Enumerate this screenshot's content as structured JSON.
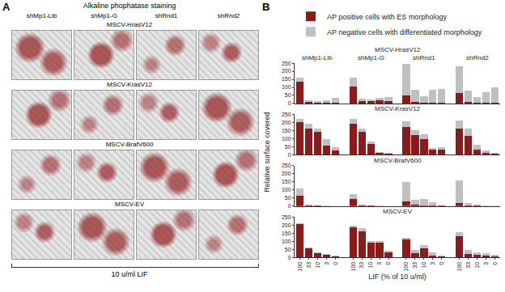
{
  "panel_labels": [
    "A",
    "B"
  ],
  "panel_a": {
    "title": "Alkaline phophatase staining",
    "columns": [
      "shMp1-Lib",
      "shMp1-G",
      "shRnd1",
      "shRnd2"
    ],
    "rows": [
      "MSCV-HrasV12",
      "MSCV-KrasV12",
      "MSCV-BrafV600",
      "MSCV-EV"
    ],
    "footer": "10 u/ml LIF"
  },
  "panel_b": {
    "ylabel": "Relative surface covered"
  },
  "chart_data": [
    {
      "type": "bar",
      "stacked": true,
      "title": "MSCV-HrasV12",
      "groups": [
        "shMp1-Lib",
        "shMp1-G",
        "shRnd1",
        "shRnd2"
      ],
      "categories": [
        "100",
        "33",
        "10",
        "3",
        "0"
      ],
      "series": [
        {
          "name": "AP positive cells with ES morphology",
          "color": "#8b1a1a",
          "values": [
            [
              135,
              10,
              5,
              5,
              5
            ],
            [
              105,
              15,
              15,
              20,
              15
            ],
            [
              50,
              10,
              5,
              5,
              5
            ],
            [
              65,
              10,
              5,
              5,
              5
            ]
          ]
        },
        {
          "name": "AP negative cells with differentiated morphology",
          "color": "#c0c0c0",
          "values": [
            [
              25,
              10,
              10,
              15,
              30
            ],
            [
              55,
              15,
              10,
              15,
              25
            ],
            [
              195,
              75,
              40,
              80,
              85
            ],
            [
              165,
              70,
              35,
              65,
              95
            ]
          ]
        }
      ],
      "ylim": [
        0,
        250
      ],
      "yticks": [
        0,
        50,
        100,
        150,
        200,
        250
      ],
      "tick_labels": "y",
      "legend": "top left"
    },
    {
      "type": "bar",
      "stacked": true,
      "title": "MSCV-KrasV12",
      "groups": [
        "shMp1-Lib",
        "shMp1-G",
        "shRnd1",
        "shRnd2"
      ],
      "categories": [
        "100",
        "33",
        "10",
        "3",
        "0"
      ],
      "series": [
        {
          "name": "AP positive cells with ES morphology",
          "color": "#8b1a1a",
          "values": [
            [
              200,
              160,
              140,
              55,
              25
            ],
            [
              190,
              140,
              65,
              10,
              5
            ],
            [
              170,
              120,
              95,
              30,
              30
            ],
            [
              160,
              115,
              30,
              10,
              5
            ]
          ]
        },
        {
          "name": "AP negative cells with differentiated morphology",
          "color": "#c0c0c0",
          "values": [
            [
              20,
              30,
              20,
              40,
              20
            ],
            [
              30,
              20,
              15,
              5,
              5
            ],
            [
              35,
              30,
              30,
              10,
              15
            ],
            [
              50,
              45,
              30,
              15,
              5
            ]
          ]
        }
      ],
      "ylim": [
        0,
        250
      ],
      "yticks": [
        0,
        50,
        100,
        150,
        200,
        250
      ],
      "tick_labels": "y"
    },
    {
      "type": "bar",
      "stacked": true,
      "title": "MSCV-BrafV600",
      "groups": [
        "shMp1-Lib",
        "shMp1-G",
        "shRnd1",
        "shRnd2"
      ],
      "categories": [
        "100",
        "33",
        "10",
        "3",
        "0"
      ],
      "series": [
        {
          "name": "AP positive cells with ES morphology",
          "color": "#8b1a1a",
          "values": [
            [
              65,
              5,
              2,
              1,
              0
            ],
            [
              45,
              5,
              2,
              1,
              0
            ],
            [
              30,
              10,
              5,
              3,
              2
            ],
            [
              20,
              5,
              2,
              1,
              0
            ]
          ]
        },
        {
          "name": "AP negative cells with differentiated morphology",
          "color": "#c0c0c0",
          "values": [
            [
              45,
              5,
              3,
              2,
              0
            ],
            [
              30,
              5,
              3,
              2,
              0
            ],
            [
              120,
              30,
              40,
              22,
              3
            ],
            [
              140,
              15,
              8,
              4,
              3
            ]
          ]
        }
      ],
      "ylim": [
        0,
        250
      ],
      "yticks": [
        0,
        50,
        100,
        150,
        200,
        250
      ],
      "tick_labels": "y"
    },
    {
      "type": "bar",
      "stacked": true,
      "title": "MSCV-EV",
      "xlabel": "LIF (% of 10 u/ml)",
      "groups": [
        "shMp1-Lib",
        "shMp1-G",
        "shRnd1",
        "shRnd2"
      ],
      "categories": [
        "100",
        "33",
        "10",
        "3",
        "0"
      ],
      "series": [
        {
          "name": "AP positive cells with ES morphology",
          "color": "#8b1a1a",
          "values": [
            [
              205,
              55,
              25,
              15,
              5
            ],
            [
              185,
              160,
              90,
              90,
              30
            ],
            [
              110,
              25,
              55,
              10,
              5
            ],
            [
              130,
              20,
              15,
              10,
              5
            ]
          ]
        },
        {
          "name": "AP negative cells with differentiated morphology",
          "color": "#c0c0c0",
          "values": [
            [
              5,
              5,
              5,
              5,
              5
            ],
            [
              10,
              20,
              10,
              10,
              10
            ],
            [
              10,
              20,
              20,
              20,
              5
            ],
            [
              25,
              25,
              15,
              15,
              10
            ]
          ]
        }
      ],
      "ylim": [
        0,
        250
      ],
      "yticks": [
        0,
        50,
        100,
        150,
        200,
        250
      ]
    }
  ]
}
